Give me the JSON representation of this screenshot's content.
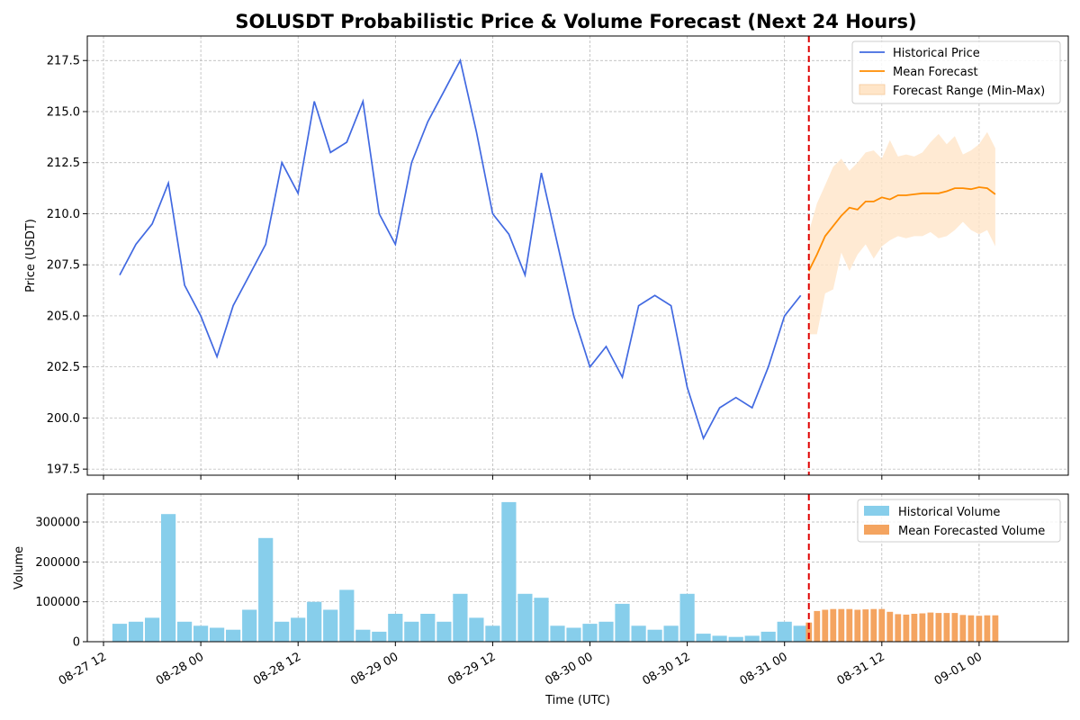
{
  "chart_data": [
    {
      "type": "line",
      "title": "SOLUSDT Probabilistic Price & Volume Forecast (Next 24 Hours)",
      "ylabel": "Price (USDT)",
      "ylim": [
        197.2,
        218.7
      ],
      "x_range": [
        "2026-08-27 10:00",
        "2026-09-01 11:00"
      ],
      "y_ticks": [
        197.5,
        200.0,
        202.5,
        205.0,
        207.5,
        210.0,
        212.5,
        215.0,
        217.5
      ],
      "y_tick_labels": [
        "197.5",
        "200.0",
        "202.5",
        "205.0",
        "207.5",
        "210.0",
        "212.5",
        "215.0",
        "217.5"
      ],
      "grid": true,
      "legend": "top-right",
      "forecast_start": "2026-08-31 03:00",
      "series": [
        {
          "name": "Historical Price",
          "color": "#4169e1",
          "x": [
            "08-27 14:00",
            "08-27 16:00",
            "08-27 18:00",
            "08-27 20:00",
            "08-27 22:00",
            "08-28 00:00",
            "08-28 02:00",
            "08-28 04:00",
            "08-28 06:00",
            "08-28 08:00",
            "08-28 10:00",
            "08-28 12:00",
            "08-28 14:00",
            "08-28 16:00",
            "08-28 18:00",
            "08-28 20:00",
            "08-28 22:00",
            "08-29 00:00",
            "08-29 02:00",
            "08-29 04:00",
            "08-29 06:00",
            "08-29 08:00",
            "08-29 10:00",
            "08-29 12:00",
            "08-29 14:00",
            "08-29 16:00",
            "08-29 18:00",
            "08-29 20:00",
            "08-29 22:00",
            "08-30 00:00",
            "08-30 02:00",
            "08-30 04:00",
            "08-30 06:00",
            "08-30 08:00",
            "08-30 10:00",
            "08-30 12:00",
            "08-30 14:00",
            "08-30 16:00",
            "08-30 18:00",
            "08-30 20:00",
            "08-30 22:00",
            "08-31 00:00",
            "08-31 02:00"
          ],
          "values": [
            207.0,
            208.5,
            209.5,
            211.5,
            206.5,
            205.0,
            203.0,
            205.5,
            207.0,
            208.5,
            212.5,
            211.0,
            215.5,
            213.0,
            213.5,
            215.5,
            210.0,
            208.5,
            212.5,
            214.5,
            216.0,
            217.5,
            214.0,
            210.0,
            209.0,
            207.0,
            212.0,
            208.5,
            205.0,
            202.5,
            203.5,
            202.0,
            205.5,
            206.0,
            205.5,
            201.5,
            199.0,
            200.5,
            201.0,
            200.5,
            202.5,
            205.0,
            206.0
          ]
        },
        {
          "name": "Mean Forecast",
          "color": "#ff8c00",
          "x": [
            "08-31 03:00",
            "08-31 04:00",
            "08-31 05:00",
            "08-31 06:00",
            "08-31 07:00",
            "08-31 08:00",
            "08-31 09:00",
            "08-31 10:00",
            "08-31 11:00",
            "08-31 12:00",
            "08-31 13:00",
            "08-31 14:00",
            "08-31 15:00",
            "08-31 16:00",
            "08-31 17:00",
            "08-31 18:00",
            "08-31 19:00",
            "08-31 20:00",
            "08-31 21:00",
            "08-31 22:00",
            "08-31 23:00",
            "09-01 00:00",
            "09-01 01:00",
            "09-01 02:00"
          ],
          "values": [
            207.2,
            208.0,
            208.9,
            209.4,
            209.9,
            210.3,
            210.2,
            210.6,
            210.6,
            210.8,
            210.7,
            210.9,
            210.9,
            210.95,
            211.0,
            211.0,
            211.0,
            211.1,
            211.25,
            211.25,
            211.2,
            211.3,
            211.25,
            210.95
          ]
        }
      ],
      "forecast_range": {
        "name": "Forecast Range (Min-Max)",
        "color": "#ffe5c8",
        "min": [
          204.1,
          204.1,
          206.1,
          206.3,
          208.1,
          207.2,
          208.0,
          208.5,
          207.8,
          208.4,
          208.7,
          208.9,
          208.8,
          208.9,
          208.9,
          209.1,
          208.8,
          208.9,
          209.2,
          209.6,
          209.2,
          209.0,
          209.2,
          208.4
        ],
        "max": [
          209.1,
          210.5,
          211.4,
          212.3,
          212.7,
          212.1,
          212.5,
          213.0,
          213.1,
          212.7,
          213.6,
          212.8,
          212.9,
          212.8,
          213.0,
          213.5,
          213.9,
          213.4,
          213.8,
          212.9,
          213.1,
          213.4,
          214.0,
          213.2
        ]
      }
    },
    {
      "type": "bar",
      "xlabel": "Time (UTC)",
      "ylabel": "Volume",
      "ylim": [
        0,
        370000
      ],
      "y_ticks": [
        0,
        100000,
        200000,
        300000
      ],
      "y_tick_labels": [
        "0",
        "100000",
        "200000",
        "300000"
      ],
      "x_ticks": [
        "2026-08-27 12:00",
        "2026-08-28 00:00",
        "2026-08-28 12:00",
        "2026-08-29 00:00",
        "2026-08-29 12:00",
        "2026-08-30 00:00",
        "2026-08-30 12:00",
        "2026-08-31 00:00",
        "2026-08-31 12:00",
        "2026-09-01 00:00"
      ],
      "x_tick_labels": [
        "08-27 12",
        "08-28 00",
        "08-28 12",
        "08-29 00",
        "08-29 12",
        "08-30 00",
        "08-30 12",
        "08-31 00",
        "08-31 12",
        "09-01 00"
      ],
      "grid": true,
      "legend": "top-right",
      "series": [
        {
          "name": "Historical Volume",
          "color": "#87ceeb",
          "x": [
            "08-27 14:00",
            "08-27 16:00",
            "08-27 18:00",
            "08-27 20:00",
            "08-27 22:00",
            "08-28 00:00",
            "08-28 02:00",
            "08-28 04:00",
            "08-28 06:00",
            "08-28 08:00",
            "08-28 10:00",
            "08-28 12:00",
            "08-28 14:00",
            "08-28 16:00",
            "08-28 18:00",
            "08-28 20:00",
            "08-28 22:00",
            "08-29 00:00",
            "08-29 02:00",
            "08-29 04:00",
            "08-29 06:00",
            "08-29 08:00",
            "08-29 10:00",
            "08-29 12:00",
            "08-29 14:00",
            "08-29 16:00",
            "08-29 18:00",
            "08-29 20:00",
            "08-29 22:00",
            "08-30 00:00",
            "08-30 02:00",
            "08-30 04:00",
            "08-30 06:00",
            "08-30 08:00",
            "08-30 10:00",
            "08-30 12:00",
            "08-30 14:00",
            "08-30 16:00",
            "08-30 18:00",
            "08-30 20:00",
            "08-30 22:00",
            "08-31 00:00",
            "08-31 02:00"
          ],
          "values": [
            45000,
            50000,
            60000,
            320000,
            50000,
            40000,
            35000,
            30000,
            80000,
            260000,
            50000,
            60000,
            100000,
            80000,
            130000,
            30000,
            25000,
            70000,
            50000,
            70000,
            50000,
            120000,
            60000,
            40000,
            350000,
            120000,
            110000,
            40000,
            35000,
            45000,
            50000,
            95000,
            40000,
            30000,
            40000,
            120000,
            20000,
            15000,
            12000,
            15000,
            25000,
            50000,
            40000
          ]
        },
        {
          "name": "Mean Forecasted Volume",
          "color": "#f4a460",
          "x": [
            "08-31 03:00",
            "08-31 04:00",
            "08-31 05:00",
            "08-31 06:00",
            "08-31 07:00",
            "08-31 08:00",
            "08-31 09:00",
            "08-31 10:00",
            "08-31 11:00",
            "08-31 12:00",
            "08-31 13:00",
            "08-31 14:00",
            "08-31 15:00",
            "08-31 16:00",
            "08-31 17:00",
            "08-31 18:00",
            "08-31 19:00",
            "08-31 20:00",
            "08-31 21:00",
            "08-31 22:00",
            "08-31 23:00",
            "09-01 00:00",
            "09-01 01:00",
            "09-01 02:00"
          ],
          "values": [
            48000,
            77000,
            80000,
            82000,
            82000,
            82000,
            80000,
            81000,
            82000,
            82000,
            75000,
            69000,
            68000,
            70000,
            71000,
            73000,
            72000,
            72000,
            72000,
            67000,
            66000,
            65000,
            66000,
            66000
          ]
        }
      ]
    }
  ]
}
